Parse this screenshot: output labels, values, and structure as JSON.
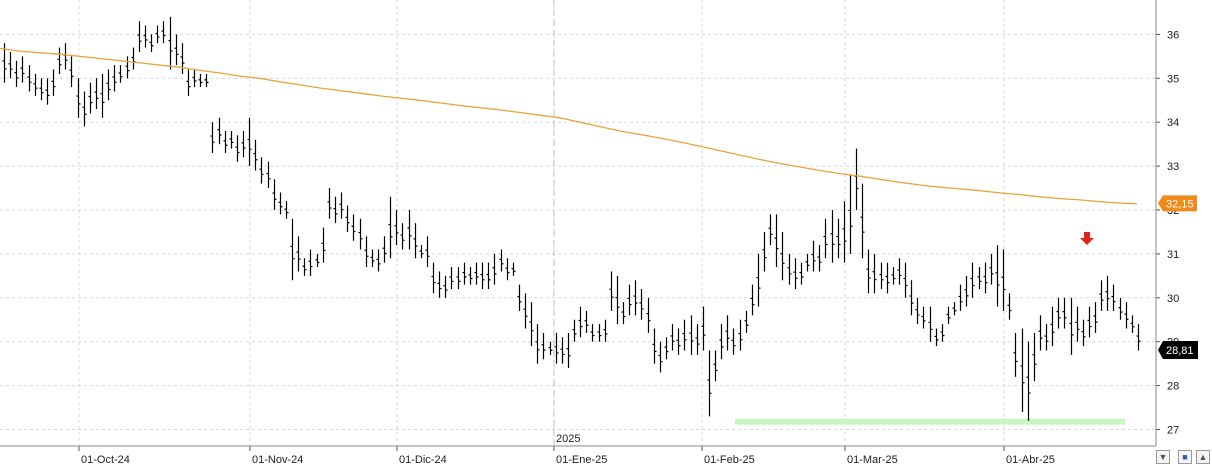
{
  "chart_data": {
    "type": "ohlc",
    "ylim": [
      26.6,
      36.8
    ],
    "y_ticks": [
      27,
      28,
      29,
      30,
      31,
      32,
      33,
      34,
      35,
      36
    ],
    "x_tick_labels": [
      "01-Oct-24",
      "01-Nov-24",
      "01-Dic-24",
      "01-Ene-25",
      "01-Feb-25",
      "01-Mar-25",
      "01-Abr-25"
    ],
    "year_label": "2025",
    "last_price_label": "28,81",
    "ma_price_label": "32,15",
    "colors": {
      "bars": "#000000",
      "moving_average": "#e8a33d",
      "ma_badge": "#f08a1c",
      "last_badge": "#000000",
      "support": "#c8f5c2",
      "arrow": "#e0241b"
    },
    "support_level": 27.18,
    "signal": "red-down-arrow",
    "icons": [
      "chevron-down-icon",
      "save-icon",
      "chevron-up-icon"
    ],
    "series": [
      {
        "bars": [
          [
            35.8,
            34.9
          ],
          [
            35.6,
            35.0
          ],
          [
            35.4,
            34.8
          ],
          [
            35.5,
            34.9
          ],
          [
            35.3,
            34.7
          ],
          [
            35.1,
            34.6
          ],
          [
            35.0,
            34.5
          ],
          [
            35.0,
            34.4
          ],
          [
            35.2,
            34.6
          ],
          [
            35.7,
            35.1
          ],
          [
            35.8,
            35.2
          ],
          [
            35.5,
            34.8
          ],
          [
            35.0,
            34.1
          ],
          [
            34.7,
            33.9
          ],
          [
            34.9,
            34.2
          ],
          [
            35.0,
            34.3
          ],
          [
            35.1,
            34.1
          ],
          [
            35.2,
            34.5
          ],
          [
            35.3,
            34.7
          ],
          [
            35.3,
            34.9
          ],
          [
            35.5,
            35.0
          ],
          [
            35.7,
            35.2
          ],
          [
            36.3,
            35.6
          ],
          [
            36.2,
            35.7
          ],
          [
            36.0,
            35.6
          ],
          [
            36.2,
            35.8
          ],
          [
            36.3,
            35.8
          ],
          [
            36.4,
            35.2
          ],
          [
            36.0,
            35.3
          ],
          [
            35.8,
            35.1
          ],
          [
            35.2,
            34.6
          ],
          [
            35.2,
            34.8
          ],
          [
            35.1,
            34.8
          ],
          [
            35.1,
            34.8
          ],
          [
            34.0,
            33.3
          ],
          [
            34.1,
            33.5
          ],
          [
            33.8,
            33.3
          ],
          [
            33.8,
            33.4
          ],
          [
            33.7,
            33.1
          ],
          [
            33.8,
            33.2
          ],
          [
            34.1,
            33.0
          ],
          [
            33.6,
            32.9
          ],
          [
            33.2,
            32.6
          ],
          [
            33.1,
            32.5
          ],
          [
            32.7,
            32.0
          ],
          [
            32.4,
            31.9
          ],
          [
            32.2,
            31.8
          ],
          [
            31.8,
            30.4
          ],
          [
            31.4,
            30.6
          ],
          [
            30.9,
            30.5
          ],
          [
            31.1,
            30.5
          ],
          [
            31.0,
            30.7
          ],
          [
            31.6,
            30.8
          ],
          [
            32.5,
            31.8
          ],
          [
            32.3,
            31.7
          ],
          [
            32.4,
            31.8
          ],
          [
            32.1,
            31.5
          ],
          [
            31.9,
            31.3
          ],
          [
            31.8,
            31.1
          ],
          [
            31.4,
            30.7
          ],
          [
            31.1,
            30.7
          ],
          [
            31.1,
            30.6
          ],
          [
            31.4,
            30.8
          ],
          [
            32.3,
            30.9
          ],
          [
            32.0,
            31.2
          ],
          [
            31.7,
            31.1
          ],
          [
            32.0,
            31.1
          ],
          [
            31.7,
            30.9
          ],
          [
            31.2,
            30.9
          ],
          [
            31.4,
            30.7
          ],
          [
            30.8,
            30.1
          ],
          [
            30.6,
            30.0
          ],
          [
            30.5,
            30.0
          ],
          [
            30.7,
            30.2
          ],
          [
            30.7,
            30.2
          ],
          [
            30.8,
            30.3
          ],
          [
            30.7,
            30.3
          ],
          [
            30.8,
            30.3
          ],
          [
            30.8,
            30.2
          ],
          [
            30.8,
            30.2
          ],
          [
            31.0,
            30.3
          ],
          [
            31.1,
            30.6
          ],
          [
            30.9,
            30.4
          ],
          [
            30.8,
            30.5
          ],
          [
            30.3,
            29.7
          ],
          [
            30.1,
            29.3
          ],
          [
            29.9,
            28.9
          ],
          [
            29.4,
            28.5
          ],
          [
            29.2,
            28.6
          ],
          [
            29.0,
            28.7
          ],
          [
            29.2,
            28.5
          ],
          [
            29.1,
            28.5
          ],
          [
            29.2,
            28.4
          ],
          [
            29.5,
            29.0
          ],
          [
            29.8,
            29.1
          ],
          [
            29.7,
            29.2
          ],
          [
            29.4,
            29.0
          ],
          [
            29.4,
            29.0
          ],
          [
            29.5,
            29.0
          ],
          [
            30.6,
            29.7
          ],
          [
            30.5,
            29.4
          ],
          [
            29.9,
            29.4
          ],
          [
            30.3,
            29.6
          ],
          [
            30.4,
            29.6
          ],
          [
            30.2,
            29.5
          ],
          [
            30.0,
            29.2
          ],
          [
            29.3,
            28.5
          ],
          [
            29.0,
            28.3
          ],
          [
            29.1,
            28.6
          ],
          [
            29.4,
            28.8
          ],
          [
            29.3,
            28.7
          ],
          [
            29.5,
            28.8
          ],
          [
            29.6,
            28.7
          ],
          [
            29.4,
            28.7
          ],
          [
            29.8,
            28.8
          ],
          [
            28.8,
            27.3
          ],
          [
            28.8,
            28.1
          ],
          [
            29.4,
            28.6
          ],
          [
            29.6,
            28.8
          ],
          [
            29.3,
            28.7
          ],
          [
            29.5,
            28.8
          ],
          [
            29.7,
            29.2
          ],
          [
            30.3,
            29.6
          ],
          [
            31.0,
            29.8
          ],
          [
            31.5,
            30.6
          ],
          [
            31.9,
            31.2
          ],
          [
            31.9,
            30.7
          ],
          [
            31.5,
            30.4
          ],
          [
            31.0,
            30.3
          ],
          [
            30.9,
            30.2
          ],
          [
            30.8,
            30.3
          ],
          [
            31.0,
            30.6
          ],
          [
            31.3,
            30.6
          ],
          [
            31.2,
            30.6
          ],
          [
            31.8,
            30.9
          ],
          [
            32.0,
            30.8
          ],
          [
            31.8,
            30.9
          ],
          [
            32.2,
            30.8
          ],
          [
            32.8,
            31.0
          ],
          [
            33.4,
            32.0
          ],
          [
            32.6,
            30.9
          ],
          [
            31.1,
            30.1
          ],
          [
            31.0,
            30.1
          ],
          [
            30.8,
            30.2
          ],
          [
            30.8,
            30.1
          ],
          [
            30.7,
            30.3
          ],
          [
            30.9,
            30.3
          ],
          [
            30.8,
            30.0
          ],
          [
            30.4,
            29.6
          ],
          [
            30.0,
            29.4
          ],
          [
            29.8,
            29.3
          ],
          [
            29.8,
            29.0
          ],
          [
            29.3,
            28.9
          ],
          [
            29.4,
            29.0
          ],
          [
            29.8,
            29.4
          ],
          [
            29.9,
            29.6
          ],
          [
            30.3,
            29.7
          ],
          [
            30.5,
            29.8
          ],
          [
            30.8,
            30.0
          ],
          [
            30.7,
            30.2
          ],
          [
            30.8,
            30.1
          ],
          [
            31.0,
            30.3
          ],
          [
            31.2,
            29.8
          ],
          [
            31.1,
            29.7
          ],
          [
            30.1,
            29.5
          ],
          [
            29.2,
            28.2
          ],
          [
            29.3,
            27.4
          ],
          [
            29.0,
            27.2
          ],
          [
            29.2,
            28.1
          ],
          [
            29.6,
            28.8
          ],
          [
            29.4,
            28.8
          ],
          [
            29.8,
            28.9
          ],
          [
            30.0,
            29.3
          ],
          [
            30.0,
            29.3
          ],
          [
            30.0,
            28.7
          ],
          [
            29.8,
            29.0
          ],
          [
            29.5,
            28.9
          ],
          [
            29.8,
            29.1
          ],
          [
            29.9,
            29.2
          ],
          [
            30.4,
            29.7
          ],
          [
            30.5,
            29.7
          ],
          [
            30.3,
            29.7
          ],
          [
            30.0,
            29.5
          ],
          [
            29.9,
            29.3
          ],
          [
            29.6,
            29.2
          ],
          [
            29.4,
            28.8
          ]
        ]
      },
      {
        "name": "",
        "ma": [
          [
            0,
            35.68
          ],
          [
            20,
            35.62
          ],
          [
            40,
            35.58
          ],
          [
            60,
            35.55
          ],
          [
            80,
            35.5
          ],
          [
            100,
            35.45
          ],
          [
            120,
            35.4
          ],
          [
            140,
            35.35
          ],
          [
            160,
            35.3
          ],
          [
            180,
            35.25
          ],
          [
            200,
            35.18
          ],
          [
            220,
            35.12
          ],
          [
            240,
            35.05
          ],
          [
            260,
            35.0
          ],
          [
            280,
            34.92
          ],
          [
            300,
            34.85
          ],
          [
            320,
            34.78
          ],
          [
            340,
            34.72
          ],
          [
            360,
            34.66
          ],
          [
            380,
            34.6
          ],
          [
            400,
            34.55
          ],
          [
            420,
            34.5
          ],
          [
            440,
            34.44
          ],
          [
            460,
            34.38
          ],
          [
            480,
            34.33
          ],
          [
            500,
            34.28
          ],
          [
            520,
            34.22
          ],
          [
            540,
            34.16
          ],
          [
            560,
            34.1
          ],
          [
            580,
            34.0
          ],
          [
            600,
            33.9
          ],
          [
            620,
            33.8
          ],
          [
            640,
            33.72
          ],
          [
            660,
            33.64
          ],
          [
            680,
            33.55
          ],
          [
            700,
            33.45
          ],
          [
            720,
            33.35
          ],
          [
            740,
            33.25
          ],
          [
            760,
            33.15
          ],
          [
            780,
            33.06
          ],
          [
            800,
            32.98
          ],
          [
            820,
            32.9
          ],
          [
            840,
            32.83
          ],
          [
            860,
            32.77
          ],
          [
            880,
            32.7
          ],
          [
            900,
            32.63
          ],
          [
            920,
            32.57
          ],
          [
            940,
            32.52
          ],
          [
            960,
            32.48
          ],
          [
            980,
            32.44
          ],
          [
            1000,
            32.39
          ],
          [
            1020,
            32.35
          ],
          [
            1040,
            32.3
          ],
          [
            1060,
            32.26
          ],
          [
            1080,
            32.23
          ],
          [
            1100,
            32.19
          ],
          [
            1120,
            32.16
          ],
          [
            1137,
            32.14
          ]
        ]
      }
    ]
  }
}
